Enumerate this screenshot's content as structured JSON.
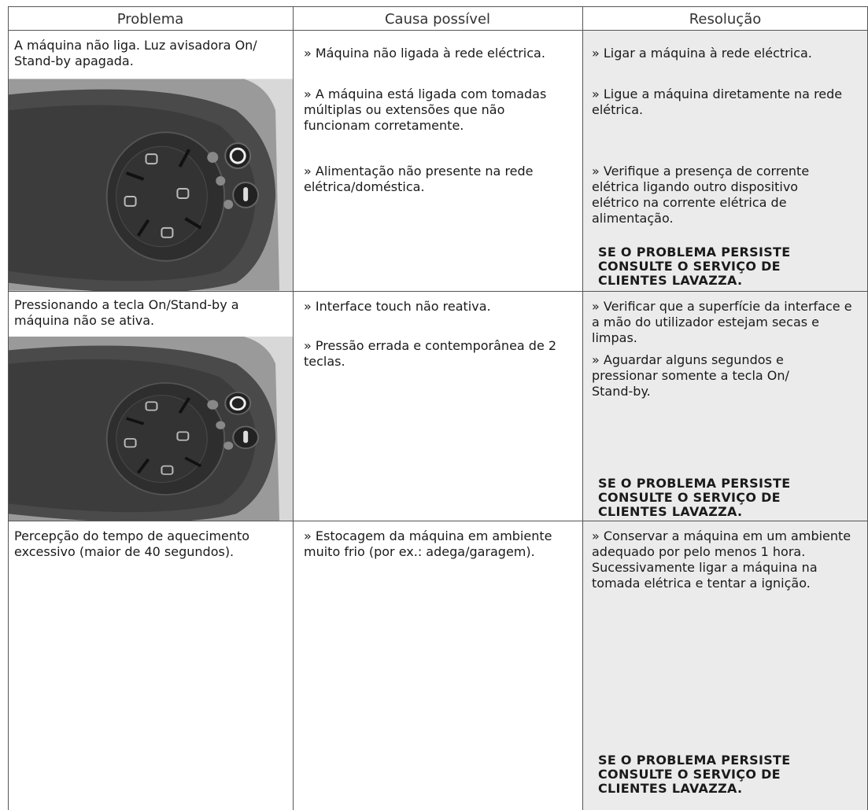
{
  "table": {
    "header": [
      "Problema",
      "Causa possível",
      "Resolução"
    ],
    "rows": [
      {
        "problem": "A máquina não liga. Luz avisadora On/ Stand-by apagada.",
        "causes": [
          "» Máquina não ligada à rede eléctrica.",
          "» A máquina está ligada com tomadas múltiplas ou extensões que não funcionam corretamente.",
          "» Alimentação não presente na rede elétrica/doméstica."
        ],
        "resolutions": [
          "» Ligar a máquina à rede eléctrica.",
          "» Ligue a máquina diretamente na rede elétrica.",
          "» Verifique a presença de corrente elétrica ligando outro dispositivo elétrico na corrente elétrica de alimentação."
        ],
        "note": "SE O PROBLEMA PERSISTE CONSULTE O SERVIÇO DE CLIENTES LAVAZZA."
      },
      {
        "problem": "Pressionando a tecla On/Stand-by a máquina não se ativa.",
        "causes": [
          "» Interface touch não reativa.",
          "» Pressão errada e contemporânea de 2 teclas."
        ],
        "resolutions": [
          "» Verificar que a superfície da interface e a mão do utilizador estejam secas e limpas.",
          "» Aguardar alguns segundos e pressionar somente a tecla On/ Stand-by."
        ],
        "note": "SE O PROBLEMA PERSISTE CONSULTE O SERVIÇO DE CLIENTES LAVAZZA."
      },
      {
        "problem": "Percepção do tempo de aquecimento excessivo (maior de 40 segundos).",
        "causes": [
          "» Estocagem da máquina em ambiente muito frio (por ex.: adega/garagem)."
        ],
        "resolutions": [
          "» Conservar a máquina em um ambiente adequado por pelo menos 1 hora. Sucessivamente ligar a máquina na tomada elétrica e tentar a ignição."
        ],
        "note": "SE O PROBLEMA PERSISTE CONSULTE O SERVIÇO DE CLIENTES LAVAZZA."
      }
    ]
  }
}
